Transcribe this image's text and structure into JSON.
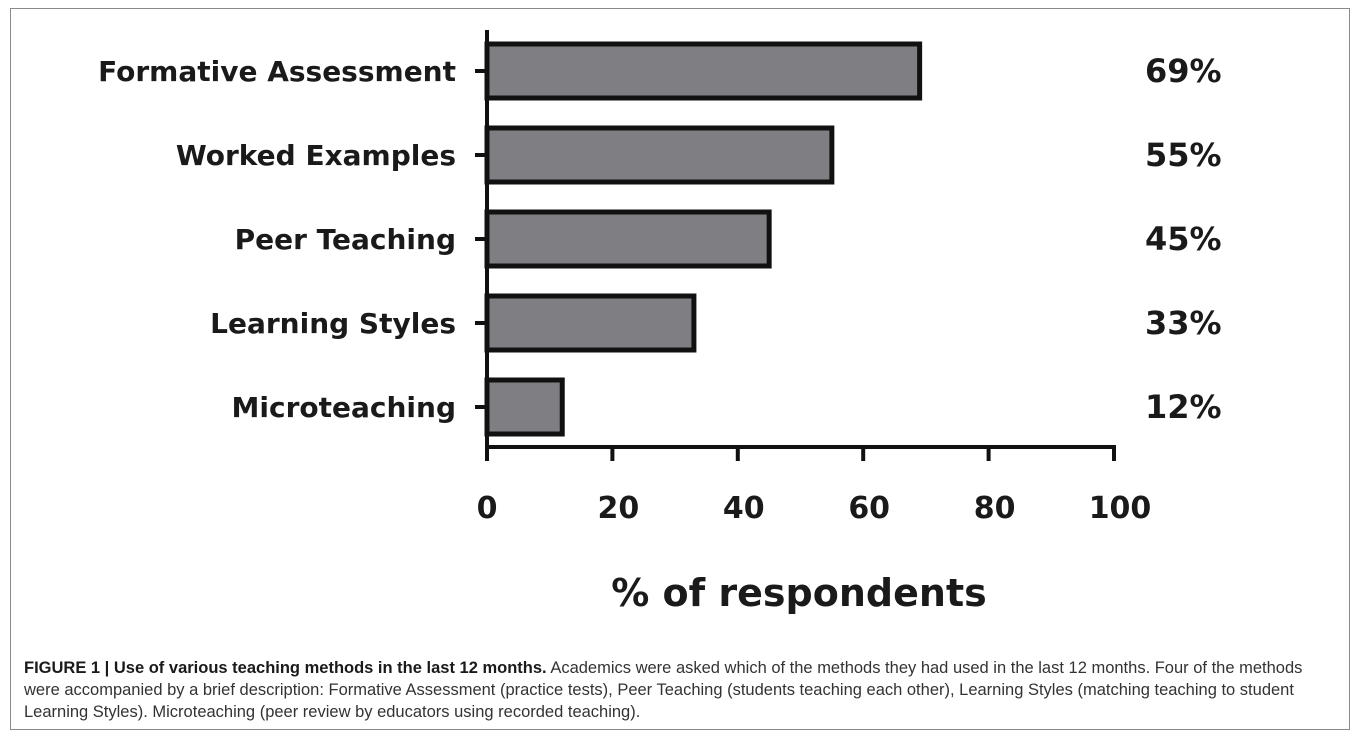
{
  "chart_data": {
    "type": "bar",
    "orientation": "horizontal",
    "categories": [
      "Formative Assessment",
      "Worked Examples",
      "Peer Teaching",
      "Learning Styles",
      "Microteaching"
    ],
    "values": [
      69,
      55,
      45,
      33,
      12
    ],
    "value_labels": [
      "69%",
      "55%",
      "45%",
      "33%",
      "12%"
    ],
    "xlabel": "% of respondents",
    "xlim": [
      0,
      100
    ],
    "xticks": [
      "0",
      "20",
      "40",
      "60",
      "80",
      "100"
    ],
    "grid": false,
    "bar_color": "#7f7f83",
    "bar_edge_color": "#111111"
  },
  "figure": {
    "caption_head": "FIGURE 1 | Use of various teaching methods in the last 12 months.",
    "caption_body": " Academics were asked which of the methods they had used in the last 12 months. Four of the methods were accompanied by a brief description: Formative Assessment (practice tests), Peer Teaching (students teaching each other), Learning Styles (matching teaching to student Learning Styles). Microteaching (peer review by educators using recorded teaching)."
  }
}
